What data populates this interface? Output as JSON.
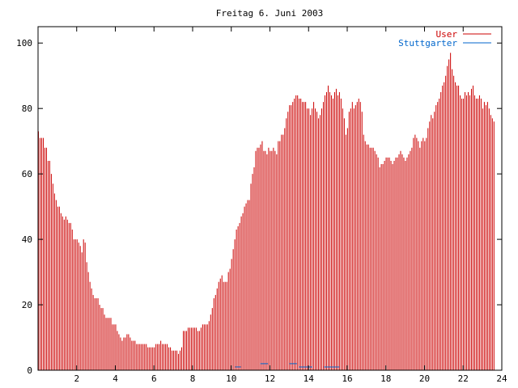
{
  "chart_data": {
    "type": "bar",
    "title": "Freitag 6. Juni 2003",
    "xlabel": "",
    "ylabel": "",
    "xlim": [
      0,
      24
    ],
    "ylim": [
      0,
      105
    ],
    "x_ticks": [
      2,
      4,
      6,
      8,
      10,
      12,
      14,
      16,
      18,
      20,
      22,
      24
    ],
    "y_ticks": [
      0,
      20,
      40,
      60,
      80,
      100
    ],
    "grid": false,
    "legend_position": "top-right",
    "series": [
      {
        "name": "User",
        "color": "#cc0000",
        "step_hours": 0.0833,
        "values": [
          73,
          71,
          71,
          71,
          68,
          68,
          64,
          64,
          60,
          57,
          54,
          52,
          50,
          50,
          48,
          47,
          46,
          47,
          46,
          45,
          45,
          43,
          40,
          40,
          40,
          39,
          38,
          36,
          40,
          39,
          33,
          30,
          27,
          25,
          23,
          22,
          22,
          22,
          20,
          19,
          19,
          17,
          16,
          16,
          16,
          16,
          14,
          14,
          14,
          12,
          11,
          10,
          9,
          10,
          10,
          11,
          11,
          10,
          9,
          9,
          9,
          8,
          8,
          8,
          8,
          8,
          8,
          8,
          7,
          7,
          7,
          7,
          7,
          8,
          8,
          8,
          9,
          8,
          8,
          8,
          8,
          7,
          7,
          6,
          6,
          6,
          6,
          5,
          6,
          7,
          12,
          12,
          12,
          13,
          13,
          13,
          13,
          13,
          13,
          12,
          12,
          13,
          14,
          14,
          14,
          14,
          15,
          17,
          19,
          22,
          23,
          25,
          27,
          28,
          29,
          27,
          27,
          27,
          30,
          31,
          34,
          37,
          40,
          43,
          44,
          45,
          47,
          48,
          50,
          51,
          52,
          52,
          57,
          60,
          62,
          67,
          68,
          68,
          69,
          70,
          67,
          67,
          66,
          68,
          67,
          67,
          68,
          67,
          66,
          70,
          70,
          72,
          72,
          74,
          77,
          79,
          81,
          81,
          82,
          83,
          84,
          84,
          83,
          83,
          82,
          82,
          82,
          80,
          80,
          78,
          80,
          82,
          80,
          79,
          77,
          78,
          80,
          82,
          84,
          85,
          87,
          85,
          84,
          83,
          85,
          86,
          84,
          85,
          83,
          80,
          77,
          72,
          74,
          79,
          80,
          82,
          80,
          81,
          82,
          83,
          82,
          79,
          72,
          70,
          69,
          69,
          68,
          68,
          68,
          67,
          66,
          65,
          62,
          63,
          63,
          64,
          65,
          65,
          65,
          64,
          63,
          64,
          65,
          65,
          66,
          67,
          66,
          65,
          64,
          65,
          66,
          67,
          68,
          71,
          72,
          71,
          70,
          68,
          70,
          71,
          70,
          71,
          74,
          76,
          78,
          77,
          79,
          81,
          82,
          83,
          85,
          87,
          88,
          90,
          93,
          95,
          97,
          92,
          90,
          88,
          87,
          87,
          84,
          83,
          83,
          85,
          84,
          85,
          84,
          86,
          87,
          84,
          83,
          83,
          84,
          83,
          80,
          82,
          81,
          82,
          80,
          78,
          77,
          76
        ]
      },
      {
        "name": "Stuttgarter",
        "color": "#0066cc",
        "segments": [
          {
            "from": 10.2,
            "to": 10.5,
            "value": 1
          },
          {
            "from": 11.5,
            "to": 11.9,
            "value": 2
          },
          {
            "from": 13.0,
            "to": 13.4,
            "value": 2
          },
          {
            "from": 13.5,
            "to": 14.2,
            "value": 1
          },
          {
            "from": 14.8,
            "to": 15.6,
            "value": 1
          }
        ]
      }
    ]
  }
}
